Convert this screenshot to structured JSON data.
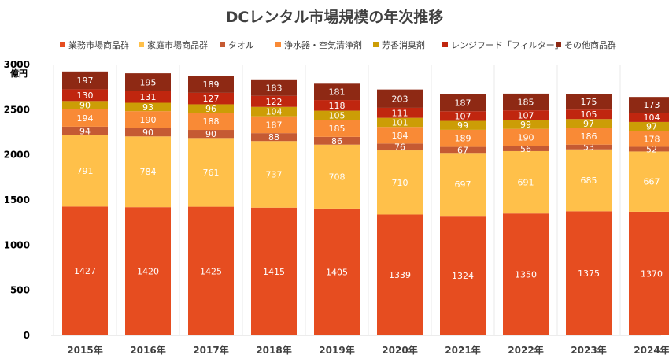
{
  "chart_data": {
    "type": "bar",
    "stacked": true,
    "title": "DCレンタル市場規模の年次推移",
    "ylabel": "億円",
    "xlabel": "",
    "ylim": [
      0,
      3000
    ],
    "yticks": [
      0,
      500,
      1000,
      1500,
      2000,
      2500,
      3000
    ],
    "grid": false,
    "legend_position": "top",
    "categories": [
      "2015年",
      "2016年",
      "2017年",
      "2018年",
      "2019年",
      "2020年",
      "2021年",
      "2022年",
      "2023年",
      "2024年"
    ],
    "series": [
      {
        "name": "業務市場商品群",
        "color": "#e64d20",
        "label_color": "#ffffff",
        "values": [
          1427,
          1420,
          1425,
          1415,
          1405,
          1339,
          1324,
          1350,
          1375,
          1370
        ]
      },
      {
        "name": "家庭市場商品群",
        "color": "#ffc04a",
        "label_color": "#ffffff",
        "values": [
          791,
          784,
          761,
          737,
          708,
          710,
          697,
          691,
          685,
          667
        ]
      },
      {
        "name": "タオル",
        "color": "#c55a33",
        "label_color": "#ffffff",
        "values": [
          94,
          90,
          90,
          88,
          86,
          76,
          67,
          56,
          53,
          52
        ]
      },
      {
        "name": "浄水器・空気清浄剤",
        "color": "#f98a36",
        "label_color": "#ffffff",
        "values": [
          194,
          190,
          188,
          187,
          185,
          184,
          189,
          190,
          186,
          178
        ]
      },
      {
        "name": "芳香消臭剤",
        "color": "#cc9d06",
        "label_color": "#ffffff",
        "values": [
          90,
          93,
          96,
          104,
          105,
          101,
          99,
          99,
          97,
          97
        ]
      },
      {
        "name": "レンジフード「フィルター」",
        "color": "#c0260f",
        "label_color": "#ffffff",
        "values": [
          130,
          131,
          127,
          122,
          118,
          111,
          107,
          107,
          105,
          104
        ]
      },
      {
        "name": "その他商品群",
        "color": "#8e2914",
        "label_color": "#ffffff",
        "values": [
          197,
          195,
          189,
          183,
          181,
          203,
          187,
          185,
          175,
          173
        ]
      }
    ]
  }
}
